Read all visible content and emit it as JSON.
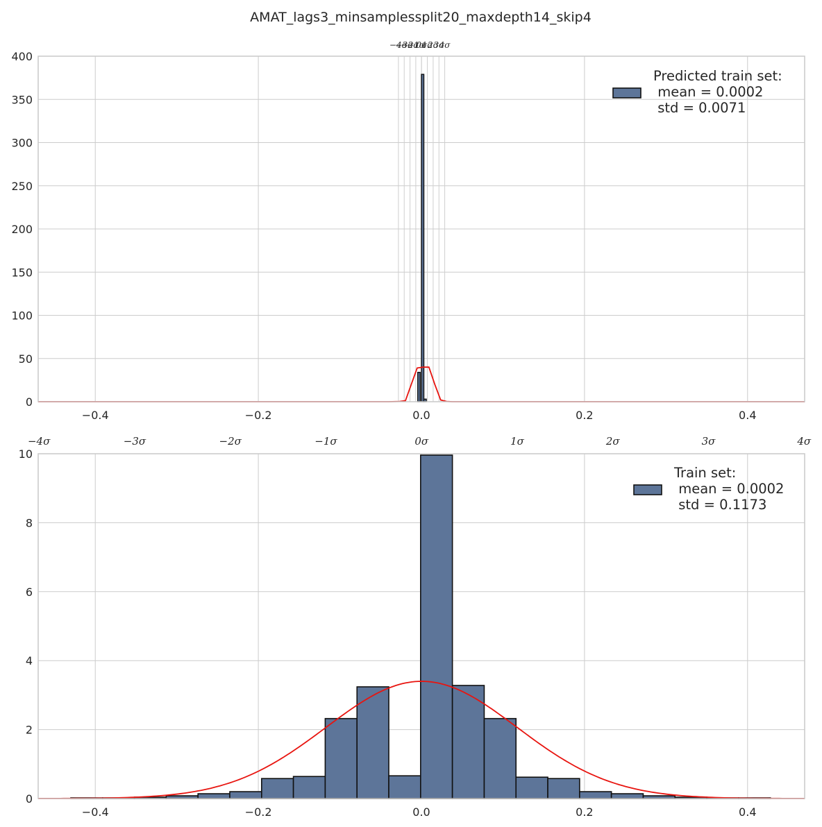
{
  "title": "AMAT_lags3_minsamplessplit20_maxdepth14_skip4",
  "colors": {
    "bar": "#5d7599",
    "bar_edge": "#111111",
    "curve": "#e8140f",
    "grid": "#cccccc",
    "frame": "#c9c9c9",
    "vline": "#cfcfcf"
  },
  "chart_data": [
    {
      "type": "bar",
      "name": "predicted-train-histogram",
      "xlim": [
        -0.47,
        0.47
      ],
      "ylim": [
        0,
        400
      ],
      "xticks": [
        -0.4,
        -0.2,
        0.0,
        0.2,
        0.4
      ],
      "xtick_labels": [
        "−0.4",
        "−0.2",
        "0.0",
        "0.2",
        "0.4"
      ],
      "yticks": [
        0,
        50,
        100,
        150,
        200,
        250,
        300,
        350,
        400
      ],
      "ytick_labels": [
        "0",
        "50",
        "100",
        "150",
        "200",
        "250",
        "300",
        "350",
        "400"
      ],
      "grid": true,
      "legend": {
        "position": "top-right",
        "lines": [
          "Predicted train set:",
          " mean = 0.0002",
          " std = 0.0071"
        ]
      },
      "sigma_lines": {
        "mean": 0.0002,
        "std": 0.0071,
        "multiples": [
          -4,
          -3,
          -2,
          -1,
          0,
          1,
          2,
          3,
          4
        ],
        "labels": [
          "−4σ",
          "−3σ",
          "−2σ",
          "−1σ",
          "0σ",
          "1σ",
          "2σ",
          "3σ",
          "4σ"
        ]
      },
      "bins": [
        {
          "x0": -0.0045,
          "x1": -0.0015,
          "value": 34
        },
        {
          "x0": 0.0,
          "x1": 0.003,
          "value": 379
        },
        {
          "x0": 0.003,
          "x1": 0.006,
          "value": 3
        }
      ],
      "curve": {
        "x": [
          -0.47,
          -0.06,
          -0.04,
          -0.0268,
          -0.0196,
          -0.0124,
          -0.0052,
          0.002,
          0.0092,
          0.0164,
          0.0236,
          0.0308,
          0.038,
          0.06,
          0.47
        ],
        "y": [
          0,
          0,
          0,
          0.3,
          1.2,
          20,
          39,
          40,
          40,
          20,
          2,
          0.3,
          0,
          0,
          0
        ]
      }
    },
    {
      "type": "bar",
      "name": "train-histogram",
      "xlim": [
        -0.47,
        0.47
      ],
      "ylim": [
        0,
        10
      ],
      "xticks": [
        -0.4,
        -0.2,
        0.0,
        0.2,
        0.4
      ],
      "xtick_labels": [
        "−0.4",
        "−0.2",
        "0.0",
        "0.2",
        "0.4"
      ],
      "yticks": [
        0,
        2,
        4,
        6,
        8,
        10
      ],
      "ytick_labels": [
        "0",
        "2",
        "4",
        "6",
        "8",
        "10"
      ],
      "grid": true,
      "legend": {
        "position": "top-right",
        "lines": [
          "Train set:",
          " mean = 0.0002",
          " std = 0.1173"
        ]
      },
      "sigma_axis": {
        "mean": 0.0002,
        "std": 0.1173,
        "multiples": [
          -4,
          -3,
          -2,
          -1,
          0,
          1,
          2,
          3,
          4
        ],
        "labels": [
          "−4σ",
          "−3σ",
          "−2σ",
          "−1σ",
          "0σ",
          "1σ",
          "2σ",
          "3σ",
          "4σ"
        ]
      },
      "bin_edges": [
        -0.43,
        -0.391,
        -0.352,
        -0.313,
        -0.274,
        -0.235,
        -0.196,
        -0.157,
        -0.118,
        -0.079,
        -0.04,
        -0.001,
        0.038,
        0.077,
        0.116,
        0.155,
        0.194,
        0.233,
        0.272,
        0.311,
        0.35,
        0.389,
        0.428
      ],
      "values": [
        0.02,
        0.02,
        0.04,
        0.08,
        0.14,
        0.2,
        0.58,
        0.64,
        2.32,
        3.24,
        0.66,
        9.96,
        3.28,
        2.32,
        0.62,
        0.58,
        0.2,
        0.14,
        0.08,
        0.04,
        0.02,
        0.02
      ],
      "curve": {
        "type": "normal_pdf",
        "mean": 0.0002,
        "std": 0.1173,
        "peak": 3.4
      }
    }
  ]
}
